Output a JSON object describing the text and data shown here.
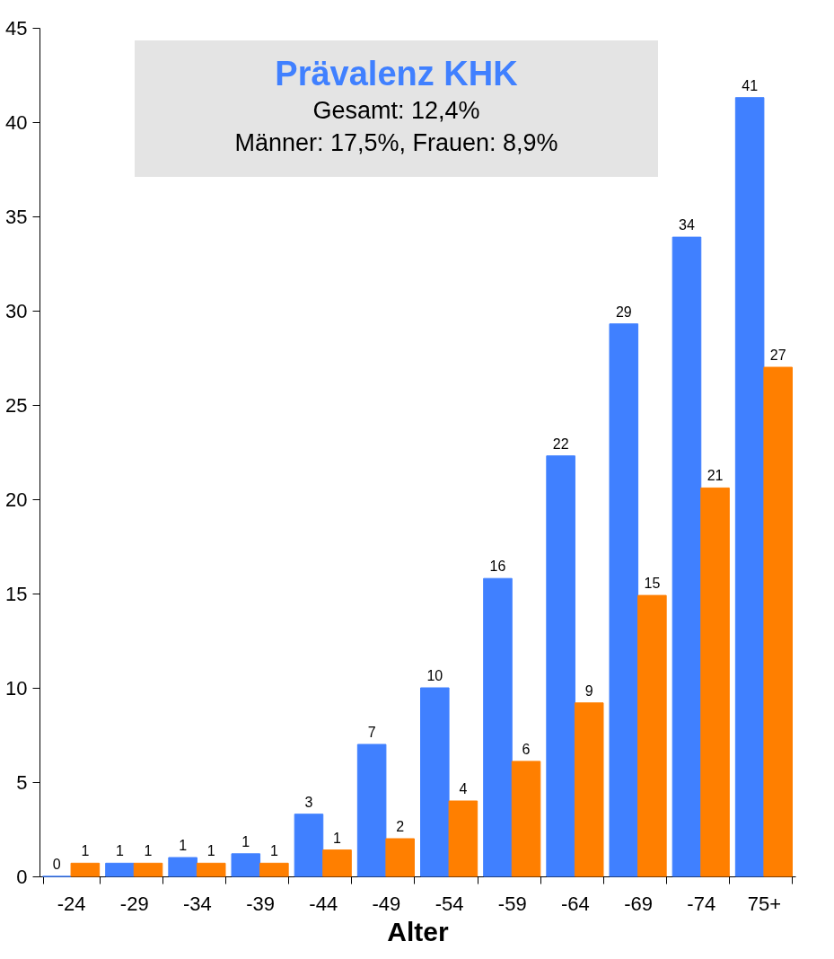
{
  "chart_data": {
    "type": "bar",
    "title": "Prävalenz KHK",
    "annotations": [
      "Gesamt: 12,4%",
      "Männer: 17,5%, Frauen: 8,9%"
    ],
    "xlabel": "Alter",
    "categories": [
      "-24",
      "-29",
      "-34",
      "-39",
      "-44",
      "-49",
      "-54",
      "-59",
      "-64",
      "-69",
      "-74",
      "75+"
    ],
    "series": [
      {
        "color": "#4080ff",
        "values": [
          0,
          0.7,
          1.0,
          1.2,
          3.3,
          7.0,
          10.0,
          15.8,
          22.3,
          29.3,
          33.9,
          41.3
        ],
        "value_labels": [
          "0",
          "1",
          "1",
          "1",
          "3",
          "7",
          "10",
          "16",
          "22",
          "29",
          "34",
          "41"
        ]
      },
      {
        "color": "#ff7f00",
        "values": [
          0.7,
          0.7,
          0.7,
          0.7,
          1.4,
          2.0,
          4.0,
          6.1,
          9.2,
          14.9,
          20.6,
          27.0
        ],
        "value_labels": [
          "1",
          "1",
          "1",
          "1",
          "1",
          "2",
          "4",
          "6",
          "9",
          "15",
          "21",
          "27"
        ]
      }
    ],
    "ylim": [
      0,
      45
    ],
    "yticks": [
      0,
      5,
      10,
      15,
      20,
      25,
      30,
      35,
      40,
      45
    ]
  }
}
